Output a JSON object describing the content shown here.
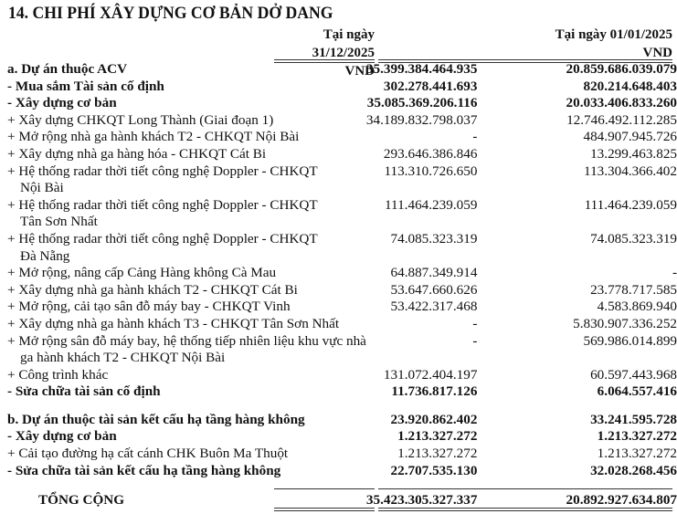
{
  "title": "14. CHI PHÍ XÂY DỰNG CƠ BẢN DỞ DANG",
  "columns": [
    {
      "date": "Tại ngày 31/12/2025",
      "unit": "VND"
    },
    {
      "date": "Tại ngày 01/01/2025",
      "unit": "VND"
    }
  ],
  "rows": [
    {
      "label": "a. Dự án thuộc ACV",
      "v1": "35.399.384.464.935",
      "v2": "20.859.686.039.079",
      "bold": true
    },
    {
      "label": "-  Mua sắm Tài sản cố định",
      "v1": "302.278.441.693",
      "v2": "820.214.648.403",
      "bold": true
    },
    {
      "label": "-  Xây dựng cơ bản",
      "v1": "35.085.369.206.116",
      "v2": "20.033.406.833.260",
      "bold": true
    },
    {
      "label": "+ Xây dựng CHKQT Long Thành (Giai đoạn 1)",
      "v1": "34.189.832.798.037",
      "v2": "12.746.492.112.285"
    },
    {
      "label": "+ Mở rộng nhà ga hành khách T2 - CHKQT Nội Bài",
      "v1": "-",
      "v2": "484.907.945.726"
    },
    {
      "label": "+ Xây dựng nhà ga hàng hóa - CHKQT Cát Bi",
      "v1": "293.646.386.846",
      "v2": "13.299.463.825"
    },
    {
      "label": "+ Hệ thống radar thời tiết công nghệ Doppler - CHKQT",
      "cont": "Nội Bài",
      "v1": "113.310.726.650",
      "v2": "113.304.366.402"
    },
    {
      "label": "+ Hệ thống radar thời tiết công nghệ Doppler - CHKQT",
      "cont": "Tân Sơn Nhất",
      "v1": "111.464.239.059",
      "v2": "111.464.239.059"
    },
    {
      "label": "+ Hệ thống radar thời tiết công nghệ Doppler - CHKQT",
      "cont": "Đà Nẵng",
      "v1": "74.085.323.319",
      "v2": "74.085.323.319"
    },
    {
      "label": "+ Mở rộng, nâng cấp Cảng Hàng không Cà Mau",
      "v1": "64.887.349.914",
      "v2": "-"
    },
    {
      "label": "+ Xây dựng nhà ga hành khách T2 - CHKQT Cát Bi",
      "v1": "53.647.660.626",
      "v2": "23.778.717.585"
    },
    {
      "label": "+ Mở rộng, cải tạo sân đỗ máy bay - CHKQT Vinh",
      "v1": "53.422.317.468",
      "v2": "4.583.869.940"
    },
    {
      "label": "+ Xây dựng nhà ga hành khách T3 - CHKQT Tân Sơn Nhất",
      "v1": "-",
      "v2": "5.830.907.336.252"
    },
    {
      "label": "+ Mở rộng sân đỗ máy bay, hệ thống tiếp nhiên liệu khu vực nhà",
      "cont": "ga hành khách T2 - CHKQT Nội Bài",
      "v1": "-",
      "v2": "569.986.014.899"
    },
    {
      "label": "+ Công trình khác",
      "v1": "131.072.404.197",
      "v2": "60.597.443.968"
    },
    {
      "label": "-  Sửa chữa tài sản cố định",
      "v1": "11.736.817.126",
      "v2": "6.064.557.416",
      "bold": true
    },
    {
      "label": "b. Dự án thuộc tài sản kết cấu hạ tầng hàng không",
      "v1": "23.920.862.402",
      "v2": "33.241.595.728",
      "bold": true,
      "gap_before": true
    },
    {
      "label": "-  Xây dựng cơ bản",
      "v1": "1.213.327.272",
      "v2": "1.213.327.272",
      "bold": true
    },
    {
      "label": "+ Cải tạo đường hạ cất cánh CHK Buôn Ma Thuột",
      "v1": "1.213.327.272",
      "v2": "1.213.327.272"
    },
    {
      "label": "-  Sửa chữa tài sản kết cấu hạ tầng hàng không",
      "v1": "22.707.535.130",
      "v2": "32.028.268.456",
      "bold": true
    }
  ],
  "total": {
    "label": "TỔNG CỘNG",
    "v1": "35.423.305.327.337",
    "v2": "20.892.927.634.807"
  }
}
